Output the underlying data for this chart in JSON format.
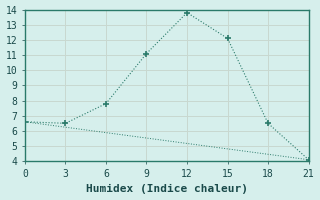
{
  "xlabel": "Humidex (Indice chaleur)",
  "ylabel": "",
  "background_color": "#d6efec",
  "grid_color": "#c8d8d0",
  "line_color": "#2a7a6a",
  "spine_color": "#2a7a6a",
  "xlim": [
    0,
    21
  ],
  "ylim": [
    4,
    14
  ],
  "xticks": [
    0,
    3,
    6,
    9,
    12,
    15,
    18,
    21
  ],
  "yticks": [
    4,
    5,
    6,
    7,
    8,
    9,
    10,
    11,
    12,
    13,
    14
  ],
  "line1_x": [
    0,
    3,
    6,
    9,
    12,
    15,
    18,
    21
  ],
  "line1_y": [
    6.6,
    6.5,
    7.8,
    11.1,
    13.8,
    12.1,
    6.5,
    4.1
  ],
  "line2_x": [
    0,
    21
  ],
  "line2_y": [
    6.6,
    4.1
  ],
  "font_family": "monospace",
  "xlabel_fontsize": 8,
  "tick_fontsize": 7,
  "tick_color": "#1a4a4a"
}
